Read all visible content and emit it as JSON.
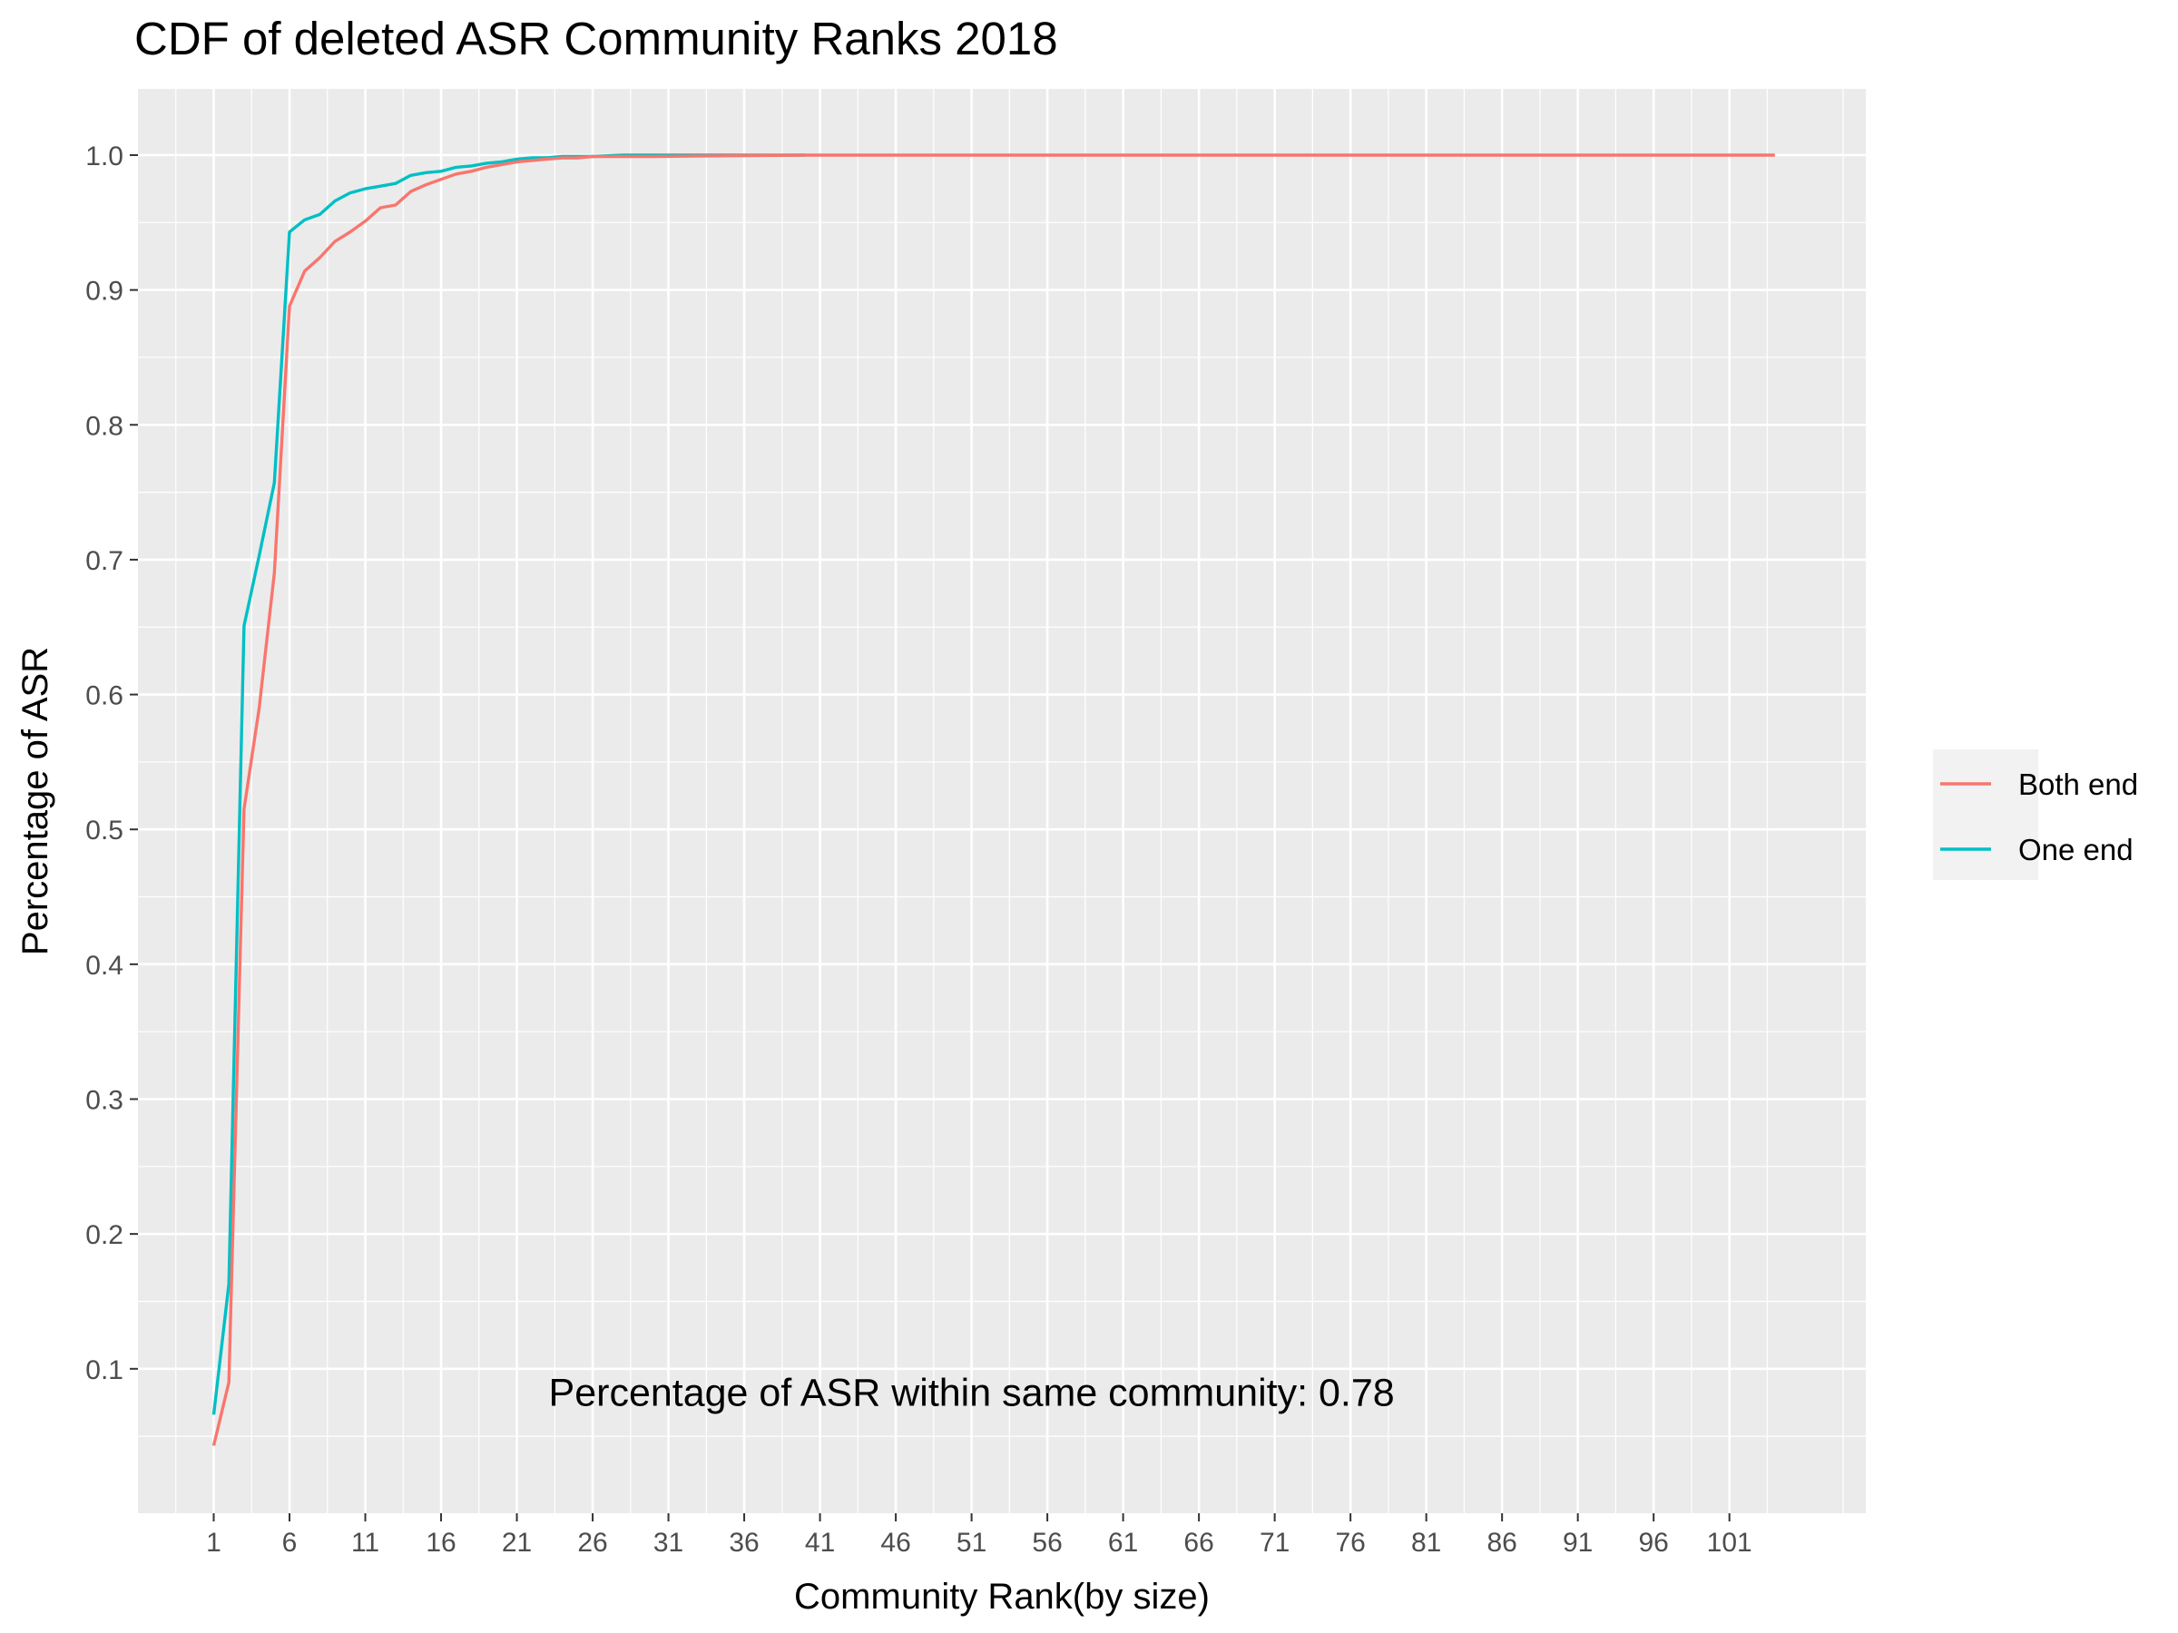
{
  "chart_data": {
    "type": "line",
    "title": "CDF of deleted ASR Community Ranks 2018",
    "xlabel": "Community Rank(by size)",
    "ylabel": "Percentage of ASR",
    "xlim": [
      -4,
      110
    ],
    "ylim": [
      -0.0071,
      1.0491
    ],
    "x_ticks": [
      1,
      6,
      11,
      16,
      21,
      26,
      31,
      36,
      41,
      46,
      51,
      56,
      61,
      66,
      71,
      76,
      81,
      86,
      91,
      96,
      101
    ],
    "y_ticks": [
      0.1,
      0.2,
      0.3,
      0.4,
      0.5,
      0.6,
      0.7,
      0.8,
      0.9,
      1.0
    ],
    "y_tick_labels": [
      "0.1",
      "0.2",
      "0.3",
      "0.4",
      "0.5",
      "0.6",
      "0.7",
      "0.8",
      "0.9",
      "1.0"
    ],
    "grid": true,
    "legend": {
      "position": "right"
    },
    "annotation": "Percentage of ASR within same community: 0.78",
    "annotation_position": {
      "x": 51,
      "y": 0.082
    },
    "series": [
      {
        "name": "Both end",
        "color": "#F8766D",
        "x": [
          1,
          2,
          3,
          4,
          5,
          6,
          7,
          8,
          9,
          10,
          11,
          12,
          13,
          14,
          15,
          16,
          17,
          18,
          19,
          20,
          21,
          22,
          23,
          24,
          25,
          26,
          28,
          30,
          35,
          40,
          50,
          60,
          80,
          104
        ],
        "y": [
          0.043,
          0.09,
          0.515,
          0.59,
          0.69,
          0.888,
          0.914,
          0.924,
          0.936,
          0.943,
          0.951,
          0.961,
          0.963,
          0.973,
          0.978,
          0.982,
          0.986,
          0.988,
          0.991,
          0.993,
          0.995,
          0.996,
          0.997,
          0.998,
          0.998,
          0.999,
          0.999,
          0.999,
          0.9995,
          1.0,
          1.0,
          1.0,
          1.0,
          1.0
        ]
      },
      {
        "name": "One end",
        "color": "#00BFC4",
        "x": [
          1,
          2,
          3,
          4,
          5,
          6,
          7,
          8,
          9,
          10,
          11,
          12,
          13,
          14,
          15,
          16,
          17,
          18,
          19,
          20,
          21,
          22,
          23,
          24,
          25,
          26,
          28,
          30,
          35,
          40
        ],
        "y": [
          0.066,
          0.163,
          0.651,
          0.703,
          0.757,
          0.943,
          0.952,
          0.956,
          0.966,
          0.972,
          0.975,
          0.977,
          0.979,
          0.985,
          0.987,
          0.988,
          0.991,
          0.992,
          0.994,
          0.995,
          0.997,
          0.998,
          0.998,
          0.999,
          0.999,
          0.999,
          1.0,
          1.0,
          1.0,
          1.0
        ]
      }
    ]
  }
}
